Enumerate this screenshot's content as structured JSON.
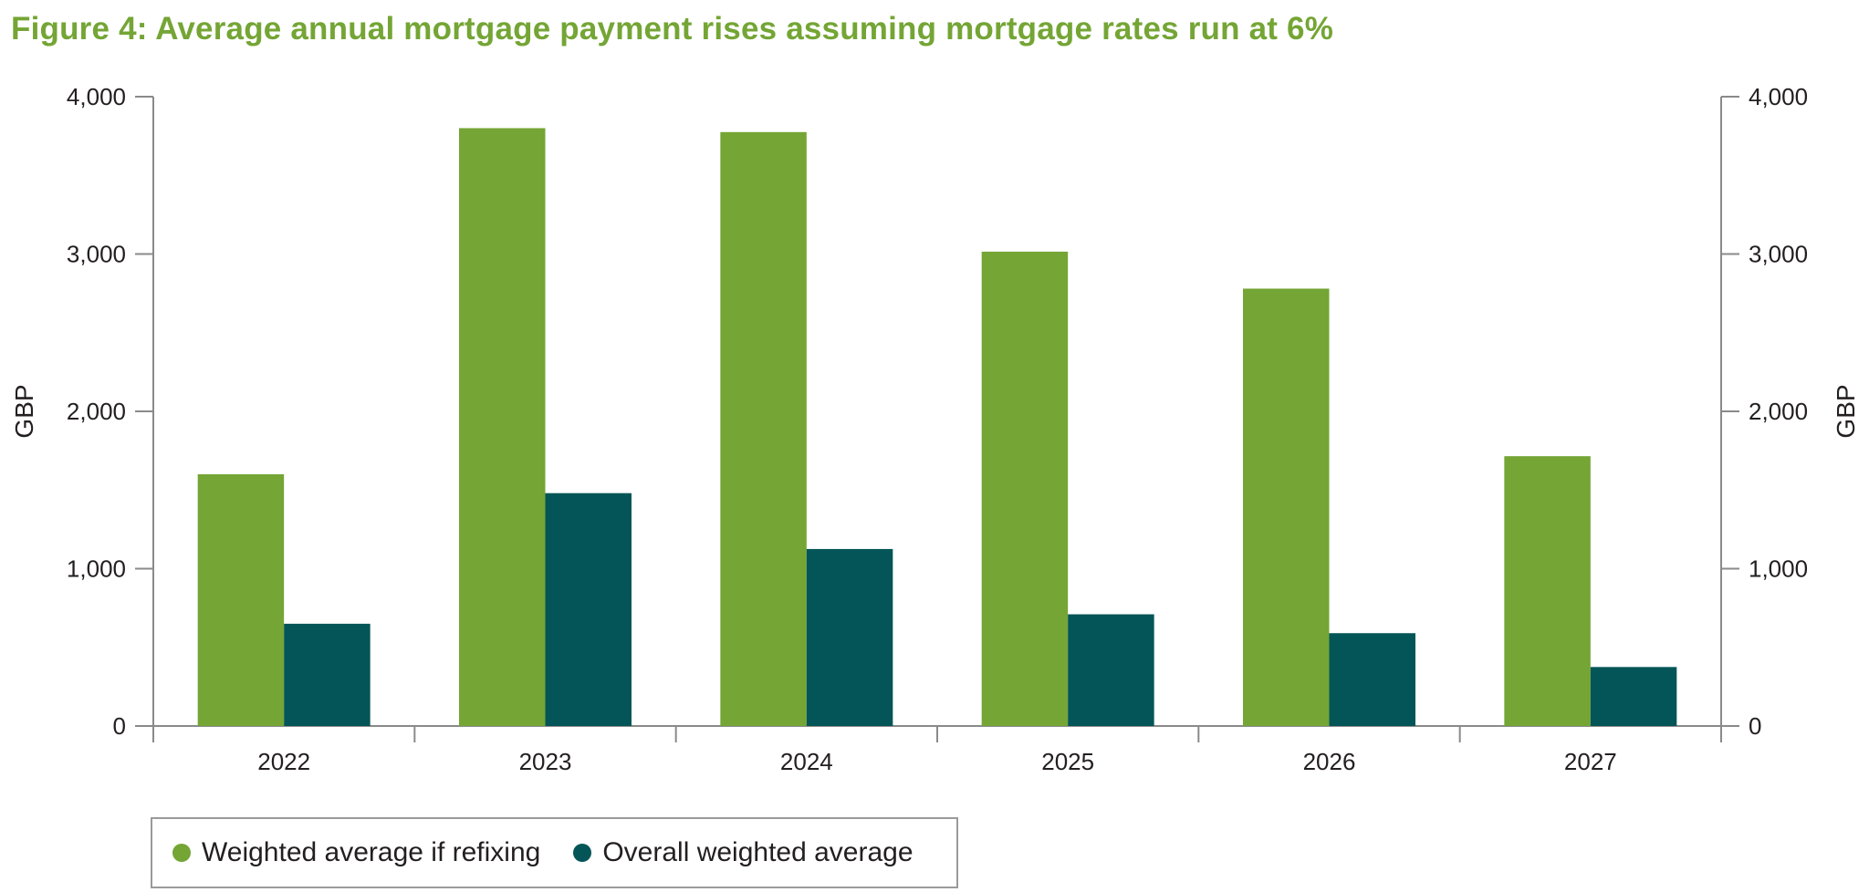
{
  "title": "Figure 4: Average annual mortgage payment rises assuming mortgage rates run at 6%",
  "colors": {
    "refixing": "#74a535",
    "overall": "#045557",
    "axis": "#8a8a8a",
    "title": "#74a535"
  },
  "chart_data": {
    "type": "bar",
    "title": "Figure 4: Average annual mortgage payment rises assuming mortgage rates run at 6%",
    "categories": [
      "2022",
      "2023",
      "2024",
      "2025",
      "2026",
      "2027"
    ],
    "series": [
      {
        "name": "Weighted average if refixing",
        "values": [
          1600,
          3800,
          3775,
          3015,
          2780,
          1715
        ]
      },
      {
        "name": "Overall weighted average",
        "values": [
          650,
          1480,
          1125,
          710,
          590,
          375
        ]
      }
    ],
    "xlabel": "",
    "ylabel": "GBP",
    "y2label": "GBP",
    "ylim": [
      0,
      4000
    ],
    "yticks": [
      0,
      1000,
      2000,
      3000,
      4000
    ],
    "ytick_labels": [
      "0",
      "1,000",
      "2,000",
      "3,000",
      "4,000"
    ],
    "grid": false,
    "legend_position": "bottom-left"
  }
}
